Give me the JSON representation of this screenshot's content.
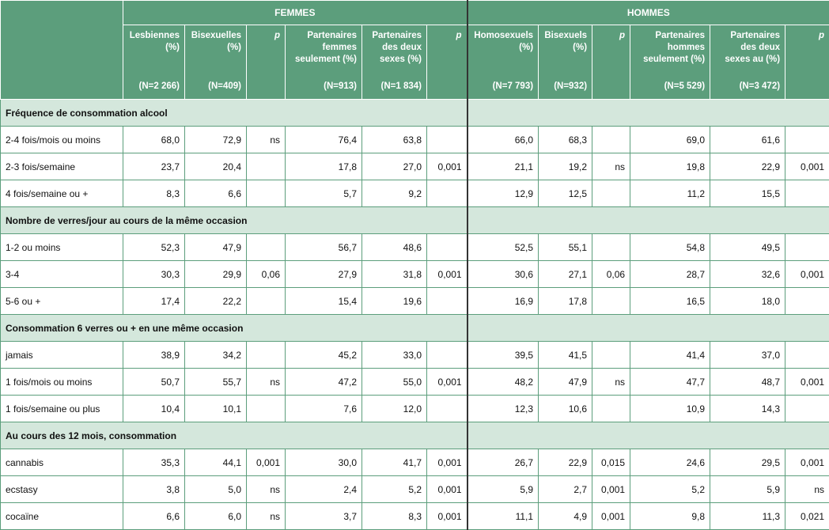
{
  "header": {
    "women_group": "FEMMES",
    "men_group": "HOMMES",
    "columns": [
      {
        "label": "Lesbiennes (%)",
        "n": "(N=2 266)"
      },
      {
        "label": "Bisexuelles (%)",
        "n": "(N=409)"
      },
      {
        "label": "p",
        "n": ""
      },
      {
        "label": "Partenaires femmes seulement (%)",
        "n": "(N=913)"
      },
      {
        "label": "Partenaires des deux sexes (%)",
        "n": "(N=1 834)"
      },
      {
        "label": "p",
        "n": ""
      },
      {
        "label": "Homosexuels (%)",
        "n": "(N=7 793)"
      },
      {
        "label": "Bisexuels (%)",
        "n": "(N=932)"
      },
      {
        "label": "p",
        "n": ""
      },
      {
        "label": "Partenaires hommes seulement (%)",
        "n": "(N=5 529)"
      },
      {
        "label": "Partenaires des deux sexes au (%)",
        "n": "(N=3 472)"
      },
      {
        "label": "p",
        "n": ""
      }
    ]
  },
  "sections": [
    {
      "title": "Fréquence de consommation alcool",
      "rows": [
        [
          "2-4 fois/mois ou moins",
          "68,0",
          "72,9",
          "ns",
          "76,4",
          "63,8",
          "",
          "66,0",
          "68,3",
          "",
          "69,0",
          "61,6",
          ""
        ],
        [
          "2-3 fois/semaine",
          "23,7",
          "20,4",
          "",
          "17,8",
          "27,0",
          "0,001",
          "21,1",
          "19,2",
          "ns",
          "19,8",
          "22,9",
          "0,001"
        ],
        [
          "4 fois/semaine ou +",
          "8,3",
          "6,6",
          "",
          "5,7",
          "9,2",
          "",
          "12,9",
          "12,5",
          "",
          "11,2",
          "15,5",
          ""
        ]
      ]
    },
    {
      "title": "Nombre de verres/jour au cours de la même occasion",
      "rows": [
        [
          "1-2 ou moins",
          "52,3",
          "47,9",
          "",
          "56,7",
          "48,6",
          "",
          "52,5",
          "55,1",
          "",
          "54,8",
          "49,5",
          ""
        ],
        [
          "3-4",
          "30,3",
          "29,9",
          "0,06",
          "27,9",
          "31,8",
          "0,001",
          "30,6",
          "27,1",
          "0,06",
          "28,7",
          "32,6",
          "0,001"
        ],
        [
          "5-6 ou +",
          "17,4",
          "22,2",
          "",
          "15,4",
          "19,6",
          "",
          "16,9",
          "17,8",
          "",
          "16,5",
          "18,0",
          ""
        ]
      ]
    },
    {
      "title": "Consommation 6 verres ou + en une même occasion",
      "rows": [
        [
          "jamais",
          "38,9",
          "34,2",
          "",
          "45,2",
          "33,0",
          "",
          "39,5",
          "41,5",
          "",
          "41,4",
          "37,0",
          ""
        ],
        [
          "1 fois/mois ou moins",
          "50,7",
          "55,7",
          "ns",
          "47,2",
          "55,0",
          "0,001",
          "48,2",
          "47,9",
          "ns",
          "47,7",
          "48,7",
          "0,001"
        ],
        [
          "1 fois/semaine ou plus",
          "10,4",
          "10,1",
          "",
          "7,6",
          "12,0",
          "",
          "12,3",
          "10,6",
          "",
          "10,9",
          "14,3",
          ""
        ]
      ]
    },
    {
      "title": "Au cours des 12 mois, consommation",
      "rows": [
        [
          "cannabis",
          "35,3",
          "44,1",
          "0,001",
          "30,0",
          "41,7",
          "0,001",
          "26,7",
          "22,9",
          "0,015",
          "24,6",
          "29,5",
          "0,001"
        ],
        [
          "ecstasy",
          "3,8",
          "5,0",
          "ns",
          "2,4",
          "5,2",
          "0,001",
          "5,9",
          "2,7",
          "0,001",
          "5,2",
          "5,9",
          "ns"
        ],
        [
          "cocaïne",
          "6,6",
          "6,0",
          "ns",
          "3,7",
          "8,3",
          "0,001",
          "11,1",
          "4,9",
          "0,001",
          "9,8",
          "11,3",
          "0,021"
        ]
      ]
    }
  ]
}
